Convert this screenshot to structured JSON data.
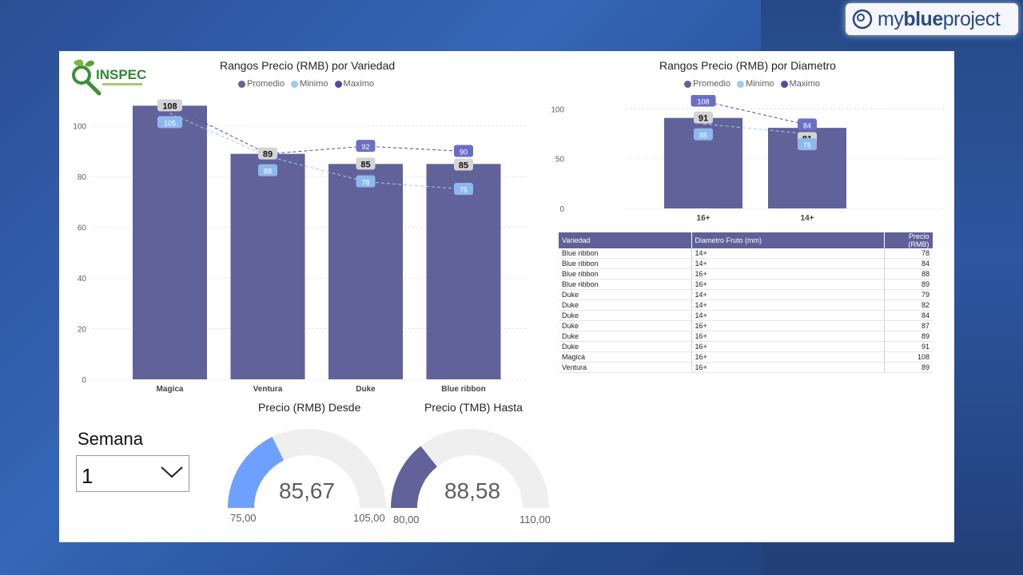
{
  "colors": {
    "promedio": "#62629a",
    "minimo": "#9ecbf0",
    "maximo": "#4a4eab",
    "gauge1_fill": "#6ea0ff",
    "gauge2_fill": "#62629a",
    "gauge_track": "#efefef"
  },
  "brand": {
    "text_regular": "my",
    "text_bold": "blue",
    "text_suffix": "project",
    "icon": "target-circle-icon"
  },
  "logo": {
    "text": "INSPEC",
    "icon": "magnifier-leaf-icon"
  },
  "chart_variedad": {
    "title": "Rangos Precio (RMB) por Variedad",
    "legend": [
      "Promedio",
      "Minimo",
      "Maximo"
    ]
  },
  "chart_diametro": {
    "title": "Rangos Precio (RMB) por Diametro",
    "legend": [
      "Promedio",
      "Minimo",
      "Maximo"
    ]
  },
  "chart_data": [
    {
      "type": "bar",
      "title": "Rangos Precio (RMB) por Variedad",
      "categories": [
        "Magica",
        "Ventura",
        "Duke",
        "Blue ribbon"
      ],
      "ylim": [
        0,
        110
      ],
      "yticks": [
        0,
        20,
        40,
        60,
        80,
        100
      ],
      "grid": true,
      "legend_position": "top",
      "series": [
        {
          "name": "Promedio",
          "kind": "bar",
          "values": [
            108,
            89,
            85,
            85
          ]
        },
        {
          "name": "Minimo",
          "kind": "line",
          "values": [
            105,
            88,
            78,
            75
          ]
        },
        {
          "name": "Maximo",
          "kind": "line",
          "values": [
            108,
            89,
            92,
            90
          ]
        }
      ]
    },
    {
      "type": "bar",
      "title": "Rangos Precio (RMB) por Diametro",
      "categories": [
        "16+",
        "14+"
      ],
      "ylim": [
        0,
        110
      ],
      "yticks": [
        0,
        50,
        100
      ],
      "grid": true,
      "legend_position": "top",
      "series": [
        {
          "name": "Promedio",
          "kind": "bar",
          "values": [
            91,
            81
          ]
        },
        {
          "name": "Minimo",
          "kind": "line",
          "values": [
            85,
            75
          ]
        },
        {
          "name": "Maximo",
          "kind": "line",
          "values": [
            108,
            84
          ]
        }
      ]
    }
  ],
  "table": {
    "headers": [
      "Variedad",
      "Diametro Fruto (mm)",
      "Precio (RMB)"
    ],
    "rows": [
      [
        "Blue ribbon",
        "14+",
        "78"
      ],
      [
        "Blue ribbon",
        "14+",
        "84"
      ],
      [
        "Blue ribbon",
        "16+",
        "88"
      ],
      [
        "Blue ribbon",
        "16+",
        "89"
      ],
      [
        "Duke",
        "14+",
        "79"
      ],
      [
        "Duke",
        "14+",
        "82"
      ],
      [
        "Duke",
        "14+",
        "84"
      ],
      [
        "Duke",
        "16+",
        "87"
      ],
      [
        "Duke",
        "16+",
        "89"
      ],
      [
        "Duke",
        "16+",
        "91"
      ],
      [
        "Magica",
        "16+",
        "108"
      ],
      [
        "Ventura",
        "16+",
        "89"
      ]
    ]
  },
  "semana": {
    "label": "Semana",
    "value": "1"
  },
  "gauge_desde": {
    "title": "Precio (RMB) Desde",
    "value": 85.67,
    "value_text": "85,67",
    "min": 75,
    "max": 105,
    "min_text": "75,00",
    "max_text": "105,00"
  },
  "gauge_hasta": {
    "title": "Precio (TMB) Hasta",
    "value": 88.58,
    "value_text": "88,58",
    "min": 80,
    "max": 110,
    "min_text": "80,00",
    "max_text": "110,00"
  }
}
